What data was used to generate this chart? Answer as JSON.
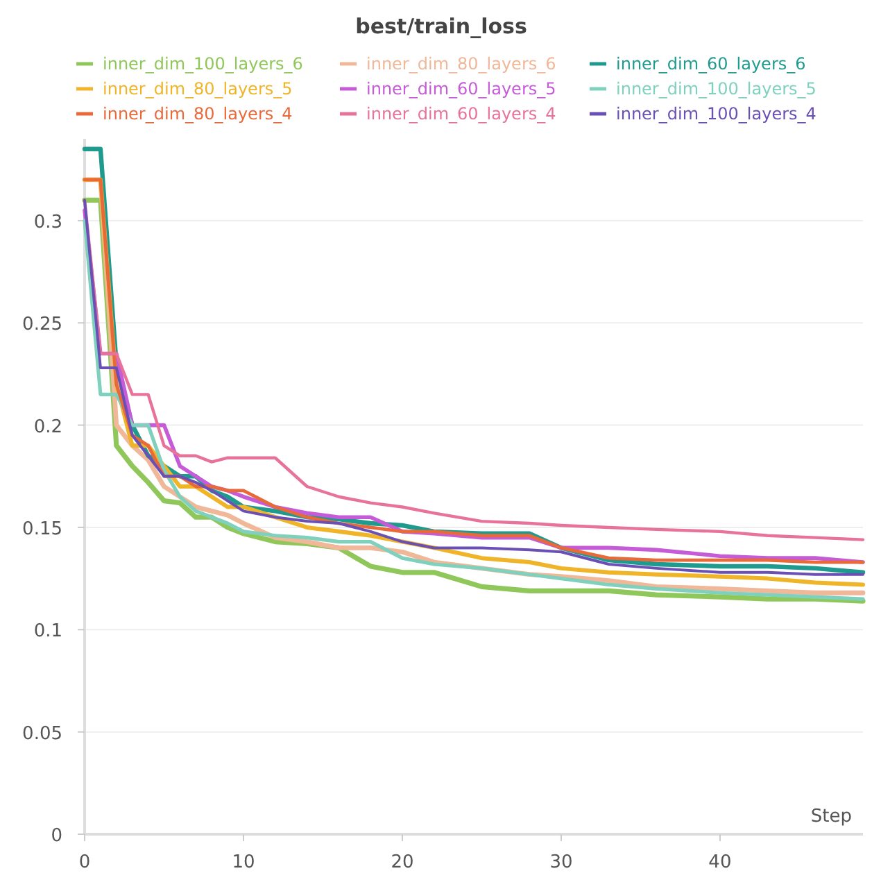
{
  "chart_data": {
    "type": "line",
    "title": "best/train_loss",
    "xlabel": "Step",
    "x": [
      0,
      1,
      2,
      3,
      4,
      5,
      6,
      7,
      8,
      9,
      10,
      12,
      14,
      16,
      18,
      20,
      22,
      25,
      28,
      30,
      33,
      36,
      40,
      43,
      46,
      49
    ],
    "series": [
      {
        "name": "inner_dim_100_layers_6",
        "color": "#8fc75a",
        "values": [
          0.31,
          0.31,
          0.19,
          0.18,
          0.172,
          0.163,
          0.162,
          0.155,
          0.155,
          0.15,
          0.147,
          0.143,
          0.142,
          0.14,
          0.131,
          0.128,
          0.128,
          0.121,
          0.119,
          0.119,
          0.119,
          0.117,
          0.116,
          0.115,
          0.115,
          0.114
        ]
      },
      {
        "name": "inner_dim_80_layers_6",
        "color": "#f0b898",
        "values": [
          0.32,
          0.32,
          0.2,
          0.19,
          0.183,
          0.17,
          0.165,
          0.16,
          0.158,
          0.156,
          0.152,
          0.145,
          0.143,
          0.14,
          0.14,
          0.138,
          0.133,
          0.13,
          0.127,
          0.126,
          0.124,
          0.121,
          0.12,
          0.119,
          0.118,
          0.118
        ]
      },
      {
        "name": "inner_dim_60_layers_6",
        "color": "#1f9a8f",
        "values": [
          0.335,
          0.335,
          0.23,
          0.2,
          0.185,
          0.18,
          0.175,
          0.175,
          0.168,
          0.165,
          0.16,
          0.158,
          0.155,
          0.154,
          0.152,
          0.151,
          0.148,
          0.147,
          0.147,
          0.14,
          0.134,
          0.132,
          0.131,
          0.131,
          0.13,
          0.128
        ]
      },
      {
        "name": "inner_dim_80_layers_5",
        "color": "#f0b429",
        "values": [
          0.32,
          0.32,
          0.22,
          0.19,
          0.19,
          0.18,
          0.17,
          0.17,
          0.165,
          0.16,
          0.16,
          0.155,
          0.15,
          0.148,
          0.146,
          0.143,
          0.14,
          0.135,
          0.133,
          0.13,
          0.128,
          0.127,
          0.126,
          0.125,
          0.123,
          0.122
        ]
      },
      {
        "name": "inner_dim_60_layers_5",
        "color": "#c65bd8",
        "values": [
          0.305,
          0.235,
          0.235,
          0.2,
          0.2,
          0.2,
          0.18,
          0.175,
          0.17,
          0.168,
          0.165,
          0.16,
          0.157,
          0.155,
          0.155,
          0.148,
          0.147,
          0.145,
          0.145,
          0.14,
          0.14,
          0.139,
          0.136,
          0.135,
          0.135,
          0.133
        ]
      },
      {
        "name": "inner_dim_100_layers_5",
        "color": "#7fd1bd",
        "values": [
          0.3,
          0.215,
          0.215,
          0.2,
          0.2,
          0.178,
          0.165,
          0.158,
          0.155,
          0.152,
          0.148,
          0.146,
          0.145,
          0.143,
          0.143,
          0.135,
          0.132,
          0.13,
          0.127,
          0.125,
          0.122,
          0.12,
          0.118,
          0.117,
          0.116,
          0.115
        ]
      },
      {
        "name": "inner_dim_80_layers_4",
        "color": "#e8693a",
        "values": [
          0.32,
          0.32,
          0.22,
          0.195,
          0.19,
          0.175,
          0.175,
          0.17,
          0.17,
          0.168,
          0.168,
          0.16,
          0.155,
          0.152,
          0.15,
          0.148,
          0.148,
          0.146,
          0.146,
          0.14,
          0.135,
          0.134,
          0.134,
          0.134,
          0.133,
          0.133
        ]
      },
      {
        "name": "inner_dim_60_layers_4",
        "color": "#e8739a",
        "values": [
          0.31,
          0.235,
          0.235,
          0.215,
          0.215,
          0.19,
          0.185,
          0.185,
          0.182,
          0.184,
          0.184,
          0.184,
          0.17,
          0.165,
          0.162,
          0.16,
          0.157,
          0.153,
          0.152,
          0.151,
          0.15,
          0.149,
          0.148,
          0.146,
          0.145,
          0.144
        ]
      },
      {
        "name": "inner_dim_100_layers_4",
        "color": "#6a4fb5",
        "values": [
          0.31,
          0.228,
          0.228,
          0.195,
          0.185,
          0.175,
          0.175,
          0.172,
          0.168,
          0.163,
          0.158,
          0.155,
          0.153,
          0.152,
          0.148,
          0.143,
          0.14,
          0.14,
          0.139,
          0.138,
          0.132,
          0.13,
          0.128,
          0.128,
          0.127,
          0.127
        ]
      }
    ],
    "xlim": [
      0,
      49
    ],
    "xticks": [
      0,
      10,
      20,
      30,
      40
    ],
    "ylim": [
      0,
      0.34
    ],
    "yticks": [
      0,
      0.05,
      0.1,
      0.15,
      0.2,
      0.25,
      0.3
    ],
    "grid": "y",
    "legend": "top",
    "marker": "none",
    "line_style": "solid"
  }
}
